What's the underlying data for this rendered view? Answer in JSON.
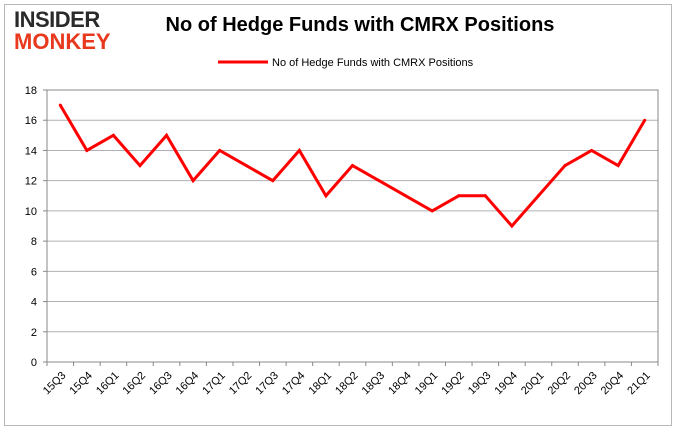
{
  "logo": {
    "line1": "INSIDER",
    "line2": "MONKEY"
  },
  "chart_data": {
    "type": "line",
    "title": "No of Hedge Funds with CMRX Positions",
    "xlabel": "",
    "ylabel": "",
    "categories": [
      "15Q3",
      "15Q4",
      "16Q1",
      "16Q2",
      "16Q3",
      "16Q4",
      "17Q1",
      "17Q2",
      "17Q3",
      "17Q4",
      "18Q1",
      "18Q2",
      "18Q3",
      "18Q4",
      "19Q1",
      "19Q2",
      "19Q3",
      "19Q4",
      "20Q1",
      "20Q2",
      "20Q3",
      "20Q4",
      "21Q1"
    ],
    "series": [
      {
        "name": "No of Hedge Funds with CMRX Positions",
        "color": "#ff0000",
        "values": [
          17,
          14,
          15,
          13,
          15,
          12,
          14,
          13,
          12,
          14,
          11,
          13,
          12,
          11,
          10,
          11,
          11,
          9,
          11,
          13,
          14,
          13,
          16
        ]
      }
    ],
    "ylim": [
      0,
      18
    ],
    "yticks": [
      0,
      2,
      4,
      6,
      8,
      10,
      12,
      14,
      16,
      18
    ],
    "grid": true,
    "legend_position": "top-center"
  }
}
